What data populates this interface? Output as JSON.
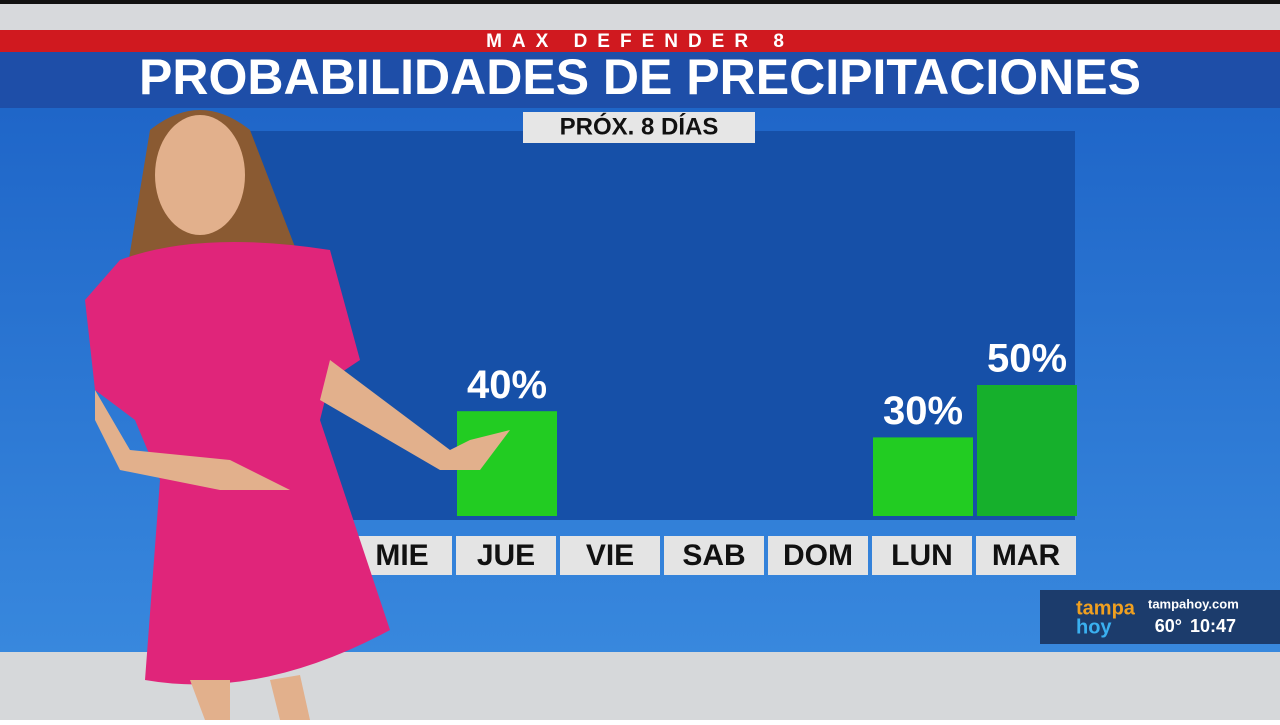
{
  "banner": "MAX DEFENDER 8",
  "chart_data": {
    "type": "bar",
    "title": "PROBABILIDADES DE PRECIPITACIONES",
    "subtitle": "PRÓX. 8 DÍAS",
    "categories": [
      "MIE",
      "JUE",
      "VIE",
      "SAB",
      "DOM",
      "LUN",
      "MAR"
    ],
    "values": [
      null,
      40,
      null,
      null,
      null,
      30,
      50
    ],
    "value_labels": [
      null,
      "40%",
      null,
      null,
      null,
      "30%",
      "50%"
    ],
    "colors": [
      null,
      "#22cc22",
      null,
      null,
      null,
      "#22cc22",
      "#16b02c"
    ],
    "ylim": [
      0,
      100
    ]
  },
  "station": {
    "logo_top": "tampa",
    "logo_bottom": "hoy",
    "website": "tampahoy.com",
    "temperature": "60°",
    "time": "10:47"
  }
}
